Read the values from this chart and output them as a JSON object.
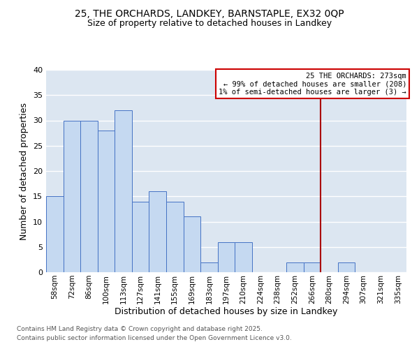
{
  "title1": "25, THE ORCHARDS, LANDKEY, BARNSTAPLE, EX32 0QP",
  "title2": "Size of property relative to detached houses in Landkey",
  "xlabel": "Distribution of detached houses by size in Landkey",
  "ylabel": "Number of detached properties",
  "categories": [
    "58sqm",
    "72sqm",
    "86sqm",
    "100sqm",
    "113sqm",
    "127sqm",
    "141sqm",
    "155sqm",
    "169sqm",
    "183sqm",
    "197sqm",
    "210sqm",
    "224sqm",
    "238sqm",
    "252sqm",
    "266sqm",
    "280sqm",
    "294sqm",
    "307sqm",
    "321sqm",
    "335sqm"
  ],
  "values": [
    15,
    30,
    30,
    28,
    32,
    14,
    16,
    14,
    11,
    2,
    6,
    6,
    0,
    0,
    2,
    2,
    0,
    2,
    0,
    0,
    0
  ],
  "bar_color": "#c5d9f1",
  "bar_edge_color": "#4472c4",
  "plot_bg_color": "#dce6f1",
  "fig_bg_color": "#ffffff",
  "grid_color": "#ffffff",
  "annotation_text": "25 THE ORCHARDS: 273sqm\n← 99% of detached houses are smaller (208)\n1% of semi-detached houses are larger (3) →",
  "vline_index": 15.5,
  "vline_color": "#aa0000",
  "ann_box_edgecolor": "#cc0000",
  "ylim": [
    0,
    40
  ],
  "yticks": [
    0,
    5,
    10,
    15,
    20,
    25,
    30,
    35,
    40
  ],
  "footer1": "Contains HM Land Registry data © Crown copyright and database right 2025.",
  "footer2": "Contains public sector information licensed under the Open Government Licence v3.0."
}
